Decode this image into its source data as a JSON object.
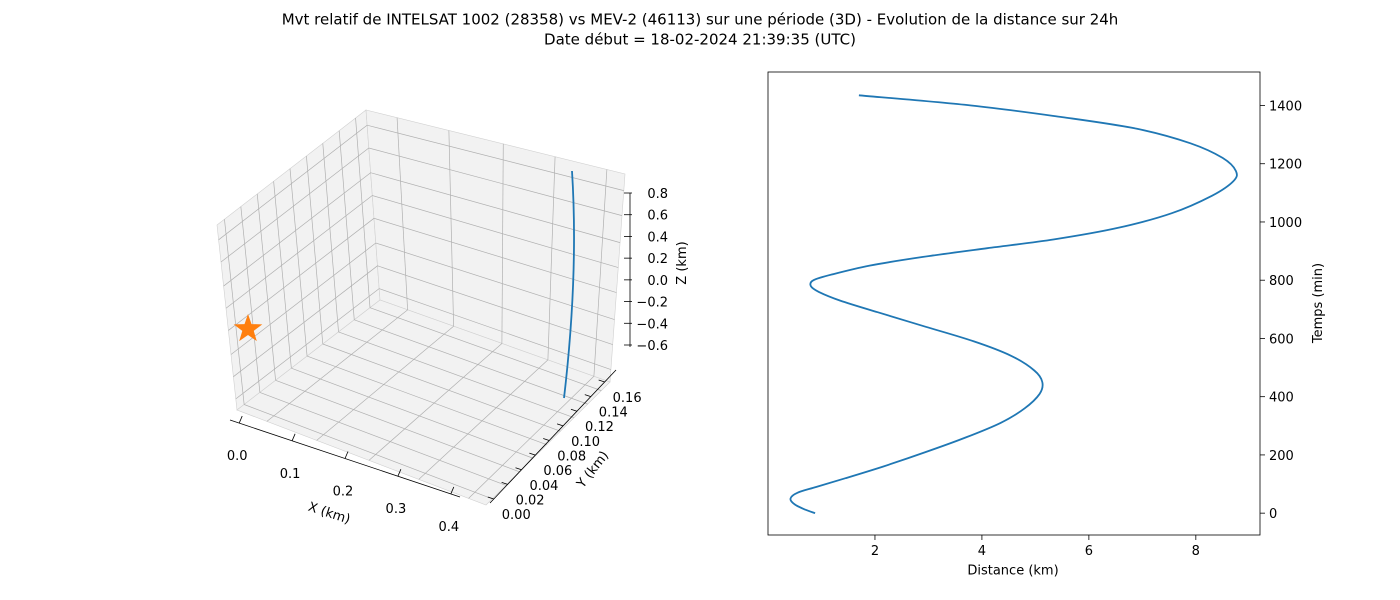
{
  "figure": {
    "title_line1": "Mvt relatif de INTELSAT 1002 (28358) vs MEV-2 (46113) sur une période (3D) - Evolution de la distance sur 24h",
    "title_line2": "Date début = 18-02-2024 21:39:35 (UTC)"
  },
  "colors": {
    "trajectory": "#1f77b4",
    "marker": "#ff7f0e",
    "pane": "#f2f2f2",
    "grid": "#b0b0b0"
  },
  "chart_data": [
    {
      "type": "line3d",
      "xlabel": "X (km)",
      "ylabel": "Y (km)",
      "zlabel": "Z (km)",
      "xticks": [
        "0.0",
        "0.1",
        "0.2",
        "0.3",
        "0.4"
      ],
      "yticks": [
        "0.00",
        "0.02",
        "0.04",
        "0.06",
        "0.08",
        "0.10",
        "0.12",
        "0.14",
        "0.16"
      ],
      "zticks": [
        "0.8",
        "0.6",
        "0.4",
        "0.2",
        "0.0",
        "−0.2",
        "−0.4",
        "−0.6"
      ],
      "xlim": [
        -0.03,
        0.43
      ],
      "ylim": [
        0.0,
        0.17
      ],
      "zlim": [
        -0.75,
        0.9
      ],
      "grid": true,
      "marker": {
        "shape": "star",
        "x": 0.0,
        "y": 0.0,
        "z": 0.0
      },
      "series": [
        {
          "x": [
            0.42,
            0.42,
            0.42,
            0.42,
            0.42
          ],
          "y": [
            0.165,
            0.165,
            0.165,
            0.165,
            0.165
          ],
          "z": [
            -0.62,
            -0.2,
            0.2,
            0.55,
            0.84
          ]
        }
      ]
    },
    {
      "type": "line",
      "xlabel": "Distance (km)",
      "ylabel": "Temps (min)",
      "xticks": [
        2,
        4,
        6,
        8
      ],
      "yticks": [
        0,
        200,
        400,
        600,
        800,
        1000,
        1200,
        1400
      ],
      "xlim": [
        0.0,
        9.2
      ],
      "ylim": [
        -75,
        1515
      ],
      "grid": false,
      "series": [
        {
          "x": [
            0.88,
            0.7,
            0.5,
            0.42,
            0.55,
            0.9,
            1.45,
            2.15,
            2.95,
            3.7,
            4.35,
            4.8,
            5.08,
            5.13,
            4.98,
            4.55,
            3.85,
            2.95,
            2.05,
            1.35,
            0.95,
            0.8,
            0.85,
            1.2,
            1.9,
            2.9,
            4.1,
            5.35,
            6.55,
            7.55,
            8.3,
            8.7,
            8.75,
            8.5,
            7.9,
            6.9,
            5.5,
            3.8,
            1.7
          ],
          "y": [
            0,
            12,
            30,
            50,
            70,
            90,
            120,
            160,
            210,
            260,
            310,
            360,
            410,
            450,
            490,
            540,
            590,
            640,
            690,
            730,
            760,
            780,
            800,
            820,
            850,
            880,
            910,
            940,
            980,
            1030,
            1090,
            1140,
            1175,
            1220,
            1270,
            1320,
            1360,
            1400,
            1435
          ]
        }
      ]
    }
  ]
}
